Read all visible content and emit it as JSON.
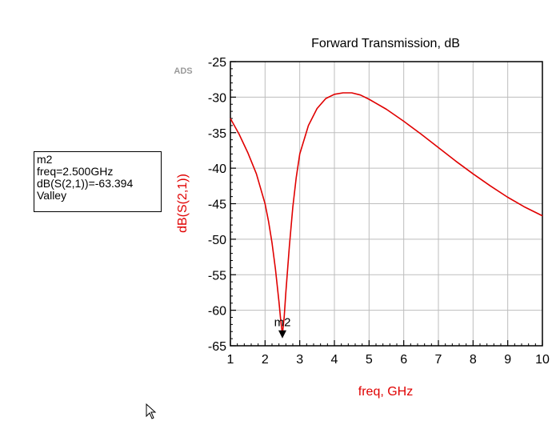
{
  "chart_data": {
    "type": "line",
    "title": "Forward Transmission, dB",
    "xlabel": "freq, GHz",
    "ylabel": "dB(S(2,1))",
    "watermark": "ADS",
    "xlim": [
      1,
      10
    ],
    "ylim": [
      -65,
      -25
    ],
    "xticks": [
      1,
      2,
      3,
      4,
      5,
      6,
      7,
      8,
      9,
      10
    ],
    "yticks": [
      -25,
      -30,
      -35,
      -40,
      -45,
      -50,
      -55,
      -60,
      -65
    ],
    "grid": true,
    "line_color": "#e00000",
    "series": [
      {
        "x": [
          1.0,
          1.25,
          1.5,
          1.75,
          2.0,
          2.1,
          2.2,
          2.3,
          2.4,
          2.45,
          2.5,
          2.55,
          2.6,
          2.7,
          2.8,
          2.9,
          3.0,
          3.25,
          3.5,
          3.75,
          4.0,
          4.25,
          4.5,
          4.75,
          5.0,
          5.5,
          6.0,
          6.5,
          7.0,
          7.5,
          8.0,
          8.5,
          9.0,
          9.5,
          10.0
        ],
        "y": [
          -33.0,
          -35.2,
          -37.8,
          -40.8,
          -45.0,
          -47.5,
          -50.5,
          -54.2,
          -58.8,
          -61.3,
          -63.4,
          -61.0,
          -57.5,
          -51.0,
          -45.5,
          -41.3,
          -38.0,
          -34.0,
          -31.6,
          -30.2,
          -29.6,
          -29.4,
          -29.4,
          -29.7,
          -30.3,
          -31.7,
          -33.4,
          -35.2,
          -37.1,
          -39.0,
          -40.8,
          -42.5,
          -44.1,
          -45.5,
          -46.7
        ]
      }
    ],
    "marker": {
      "name": "m2",
      "x": 2.5,
      "y": -63.394
    }
  },
  "marker_readout": {
    "line1": "m2",
    "line2": "freq=2.500GHz",
    "line3": "dB(S(2,1))=-63.394",
    "line4": "Valley"
  }
}
